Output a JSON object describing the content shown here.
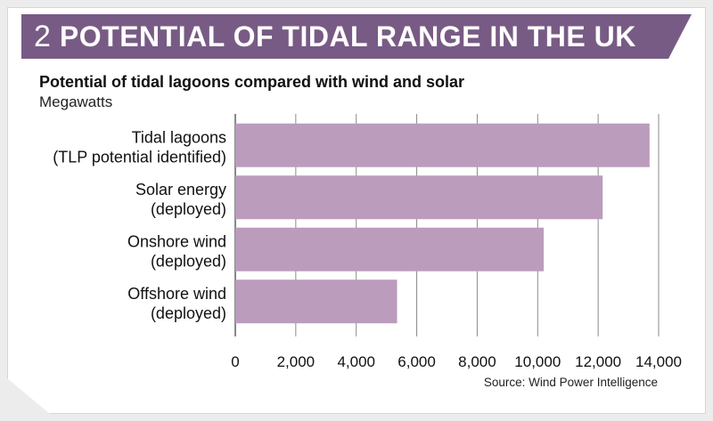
{
  "header": {
    "number": "2",
    "title": "POTENTIAL OF TIDAL RANGE IN THE UK",
    "banner_color": "#785b85"
  },
  "chart_data": {
    "type": "bar",
    "orientation": "horizontal",
    "title": "Potential of tidal lagoons compared with wind and solar",
    "ylabel": "Megawatts",
    "categories": [
      [
        "Tidal lagoons",
        "(TLP potential identified)"
      ],
      [
        "Solar energy",
        "(deployed)"
      ],
      [
        "Onshore wind",
        "(deployed)"
      ],
      [
        "Offshore wind",
        "(deployed)"
      ]
    ],
    "values": [
      13700,
      12150,
      10200,
      5350
    ],
    "xlim": [
      0,
      14000
    ],
    "xticks": [
      0,
      2000,
      4000,
      6000,
      8000,
      10000,
      12000,
      14000
    ],
    "xtick_labels": [
      "0",
      "2,000",
      "4,000",
      "6,000",
      "8,000",
      "10,000",
      "12,000",
      "14,000"
    ],
    "grid": true,
    "bar_color": "#bb9cbd"
  },
  "source": "Source: Wind Power Intelligence"
}
